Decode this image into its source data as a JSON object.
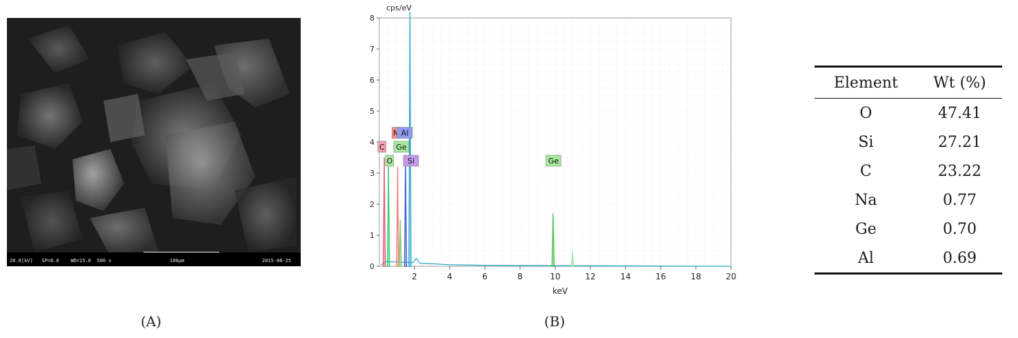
{
  "panel_a": {
    "caption": "(A)",
    "sem_footer": {
      "left": "20.0[kV]   SP=8.0    WD=15.0  500 x",
      "scale": "100μm",
      "date": "2015-08-25"
    }
  },
  "panel_b": {
    "caption": "(B)",
    "chart_data": {
      "type": "line",
      "ylabel": "cps/eV",
      "xlabel": "keV",
      "xlim": [
        0,
        20
      ],
      "ylim": [
        0,
        8
      ],
      "x_ticks": [
        "2",
        "4",
        "6",
        "8",
        "10",
        "12",
        "14",
        "16",
        "18",
        "20"
      ],
      "y_ticks": [
        "0",
        "1",
        "2",
        "3",
        "4",
        "5",
        "6",
        "7",
        "8"
      ],
      "grid": true,
      "peaks": [
        {
          "element": "C",
          "energy": 0.28,
          "height": 3.5,
          "color": "#e85a78"
        },
        {
          "element": "O",
          "energy": 0.52,
          "height": 3.3,
          "color": "#2ecc71"
        },
        {
          "element": "Na",
          "energy": 1.04,
          "height": 3.2,
          "color": "#f08080"
        },
        {
          "element": "Ge",
          "energy": 1.19,
          "height": 1.5,
          "color": "#7ccd5c"
        },
        {
          "element": "Al",
          "energy": 1.49,
          "height": 3.5,
          "color": "#4a5fd6"
        },
        {
          "element": "Si",
          "energy": 1.74,
          "height": 8.2,
          "color": "#2aa7c9"
        },
        {
          "element": "Ge",
          "energy": 9.88,
          "height": 1.7,
          "color": "#4cc24c"
        },
        {
          "element": "Ge",
          "energy": 10.98,
          "height": 0.48,
          "color": "#9ee39e"
        }
      ],
      "labels": [
        {
          "text": "C",
          "energy": 0.15,
          "y": 3.85,
          "bg": "#f4a0b4"
        },
        {
          "text": "N",
          "energy": 0.95,
          "y": 4.3,
          "bg": "#f49090"
        },
        {
          "text": "Al",
          "energy": 1.45,
          "y": 4.3,
          "bg": "#8e9cf0"
        },
        {
          "text": "Ge",
          "energy": 1.25,
          "y": 3.85,
          "bg": "#a8e89e"
        },
        {
          "text": "O",
          "energy": 0.58,
          "y": 3.4,
          "bg": "#a8e89e"
        },
        {
          "text": "Si",
          "energy": 1.8,
          "y": 3.4,
          "bg": "#c49ae6"
        },
        {
          "text": "Ge",
          "energy": 9.9,
          "y": 3.4,
          "bg": "#a8e89e"
        }
      ]
    }
  },
  "table": {
    "headers": [
      "Element",
      "Wt (%)"
    ],
    "rows": [
      [
        "O",
        "47.41"
      ],
      [
        "Si",
        "27.21"
      ],
      [
        "C",
        "23.22"
      ],
      [
        "Na",
        "0.77"
      ],
      [
        "Ge",
        "0.70"
      ],
      [
        "Al",
        "0.69"
      ]
    ]
  }
}
